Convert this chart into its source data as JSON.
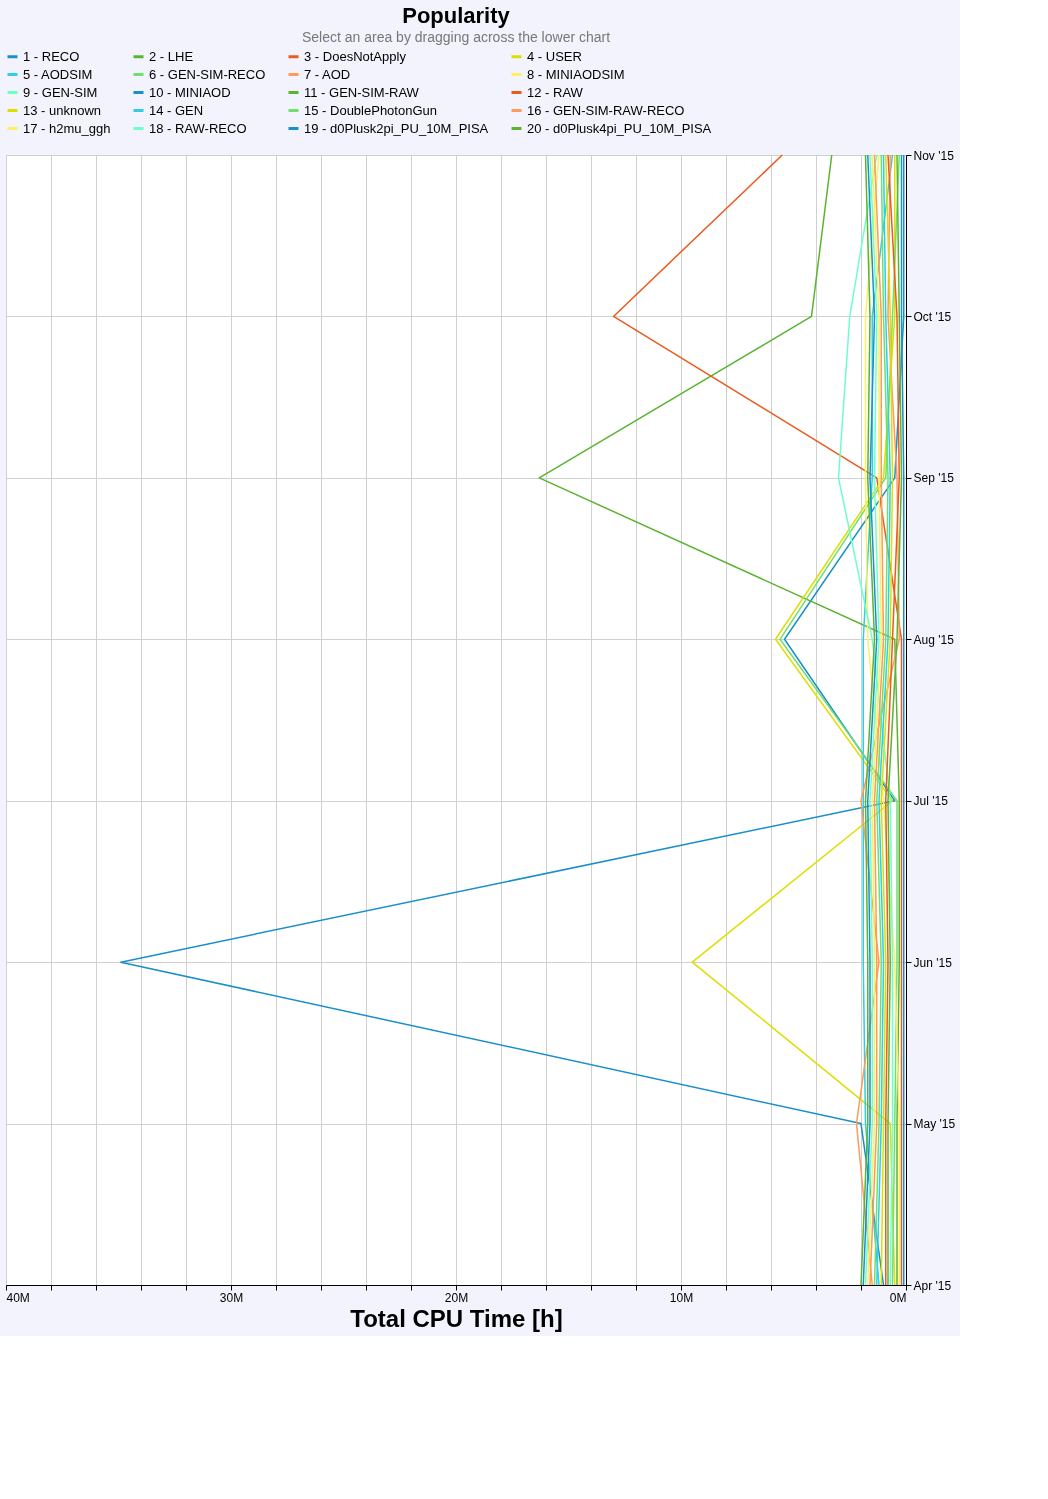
{
  "chart_data": {
    "type": "line",
    "orientation": "horizontal",
    "title": "Popularity",
    "subtitle": "Select an area by dragging across the lower chart",
    "xlabel": "Total CPU Time [h]",
    "categories": [
      "Nov '15",
      "Oct '15",
      "Sep '15",
      "Aug '15",
      "Jul '15",
      "Jun '15",
      "May '15",
      "Apr '15"
    ],
    "xlim": [
      40000000,
      0
    ],
    "xticks": [
      {
        "value": 40000000,
        "label": "40M"
      },
      {
        "value": 38000000,
        "label": null
      },
      {
        "value": 36000000,
        "label": null
      },
      {
        "value": 34000000,
        "label": null
      },
      {
        "value": 32000000,
        "label": null
      },
      {
        "value": 30000000,
        "label": "30M"
      },
      {
        "value": 28000000,
        "label": null
      },
      {
        "value": 26000000,
        "label": null
      },
      {
        "value": 24000000,
        "label": null
      },
      {
        "value": 22000000,
        "label": null
      },
      {
        "value": 20000000,
        "label": "20M"
      },
      {
        "value": 18000000,
        "label": null
      },
      {
        "value": 16000000,
        "label": null
      },
      {
        "value": 14000000,
        "label": null
      },
      {
        "value": 12000000,
        "label": null
      },
      {
        "value": 10000000,
        "label": "10M"
      },
      {
        "value": 8000000,
        "label": null
      },
      {
        "value": 6000000,
        "label": null
      },
      {
        "value": 4000000,
        "label": null
      },
      {
        "value": 2000000,
        "label": null
      },
      {
        "value": 0,
        "label": "0M"
      }
    ],
    "grid": true,
    "legend": "top",
    "marker": "none",
    "line_style": "solid",
    "series": [
      {
        "name": "1 - RECO",
        "color": "#1a8fc9",
        "values": [
          100000,
          100000,
          500000,
          5400000,
          500000,
          34900000,
          2000000,
          1000000
        ]
      },
      {
        "name": "2 - LHE",
        "color": "#5ab432",
        "values": [
          3300000,
          4200000,
          16300000,
          500000,
          300000,
          300000,
          400000,
          400000
        ]
      },
      {
        "name": "3 - DoesNotApply",
        "color": "#ec5a1e",
        "values": [
          5500000,
          13000000,
          1300000,
          200000,
          200000,
          200000,
          200000,
          200000
        ]
      },
      {
        "name": "4 - USER",
        "color": "#dede00",
        "values": [
          500000,
          500000,
          1000000,
          5800000,
          600000,
          9500000,
          700000,
          500000
        ]
      },
      {
        "name": "5 - AODSIM",
        "color": "#2fcde6",
        "values": [
          600000,
          1500000,
          1500000,
          1900000,
          1900000,
          1900000,
          1800000,
          1200000
        ]
      },
      {
        "name": "6 - GEN-SIM-RECO",
        "color": "#6ee06e",
        "values": [
          300000,
          600000,
          900000,
          5600000,
          400000,
          400000,
          500000,
          600000
        ]
      },
      {
        "name": "7 - AOD",
        "color": "#ff9a5a",
        "values": [
          700000,
          800000,
          400000,
          300000,
          2000000,
          1200000,
          2200000,
          1500000
        ]
      },
      {
        "name": "8 - MINIAODSIM",
        "color": "#fff060",
        "values": [
          1200000,
          1800000,
          1800000,
          1700000,
          1000000,
          500000,
          300000,
          300000
        ]
      },
      {
        "name": "9 - GEN-SIM",
        "color": "#6effc8",
        "values": [
          1300000,
          2500000,
          3000000,
          1500000,
          700000,
          600000,
          600000,
          700000
        ]
      },
      {
        "name": "10 - MINIAOD",
        "color": "#1a8fc9",
        "values": [
          200000,
          200000,
          100000,
          100000,
          100000,
          100000,
          100000,
          100000
        ]
      },
      {
        "name": "11 - GEN-SIM-RAW",
        "color": "#5ab432",
        "values": [
          400000,
          300000,
          200000,
          400000,
          800000,
          700000,
          800000,
          800000
        ]
      },
      {
        "name": "12 - RAW",
        "color": "#ec5a1e",
        "values": [
          800000,
          400000,
          300000,
          600000,
          900000,
          800000,
          900000,
          900000
        ]
      },
      {
        "name": "13 - unknown",
        "color": "#dede00",
        "values": [
          900000,
          700000,
          600000,
          700000,
          1100000,
          900000,
          1000000,
          1100000
        ]
      },
      {
        "name": "14 - GEN",
        "color": "#2fcde6",
        "values": [
          1000000,
          900000,
          700000,
          800000,
          1200000,
          1000000,
          1100000,
          1300000
        ]
      },
      {
        "name": "15 - DoublePhotonGun",
        "color": "#6ee06e",
        "values": [
          1100000,
          1000000,
          800000,
          900000,
          1300000,
          1100000,
          1200000,
          1400000
        ]
      },
      {
        "name": "16 - GEN-SIM-RAW-RECO",
        "color": "#ff9a5a",
        "values": [
          1400000,
          1100000,
          1100000,
          1000000,
          1400000,
          1300000,
          1300000,
          1600000
        ]
      },
      {
        "name": "17 - h2mu_ggh",
        "color": "#fff060",
        "values": [
          1500000,
          1200000,
          1200000,
          1100000,
          1500000,
          1400000,
          1400000,
          1700000
        ]
      },
      {
        "name": "18 - RAW-RECO",
        "color": "#6effc8",
        "values": [
          1600000,
          1300000,
          1400000,
          1200000,
          1600000,
          1500000,
          1500000,
          1800000
        ]
      },
      {
        "name": "19 - d0Plusk2pi_PU_10M_PISA",
        "color": "#1a8fc9",
        "values": [
          1700000,
          1400000,
          1600000,
          1300000,
          1700000,
          1600000,
          1600000,
          1900000
        ]
      },
      {
        "name": "20 - d0Plusk4pi_PU_10M_PISA",
        "color": "#5ab432",
        "values": [
          1800000,
          1600000,
          1700000,
          1400000,
          1800000,
          1700000,
          1700000,
          2000000
        ]
      }
    ]
  }
}
